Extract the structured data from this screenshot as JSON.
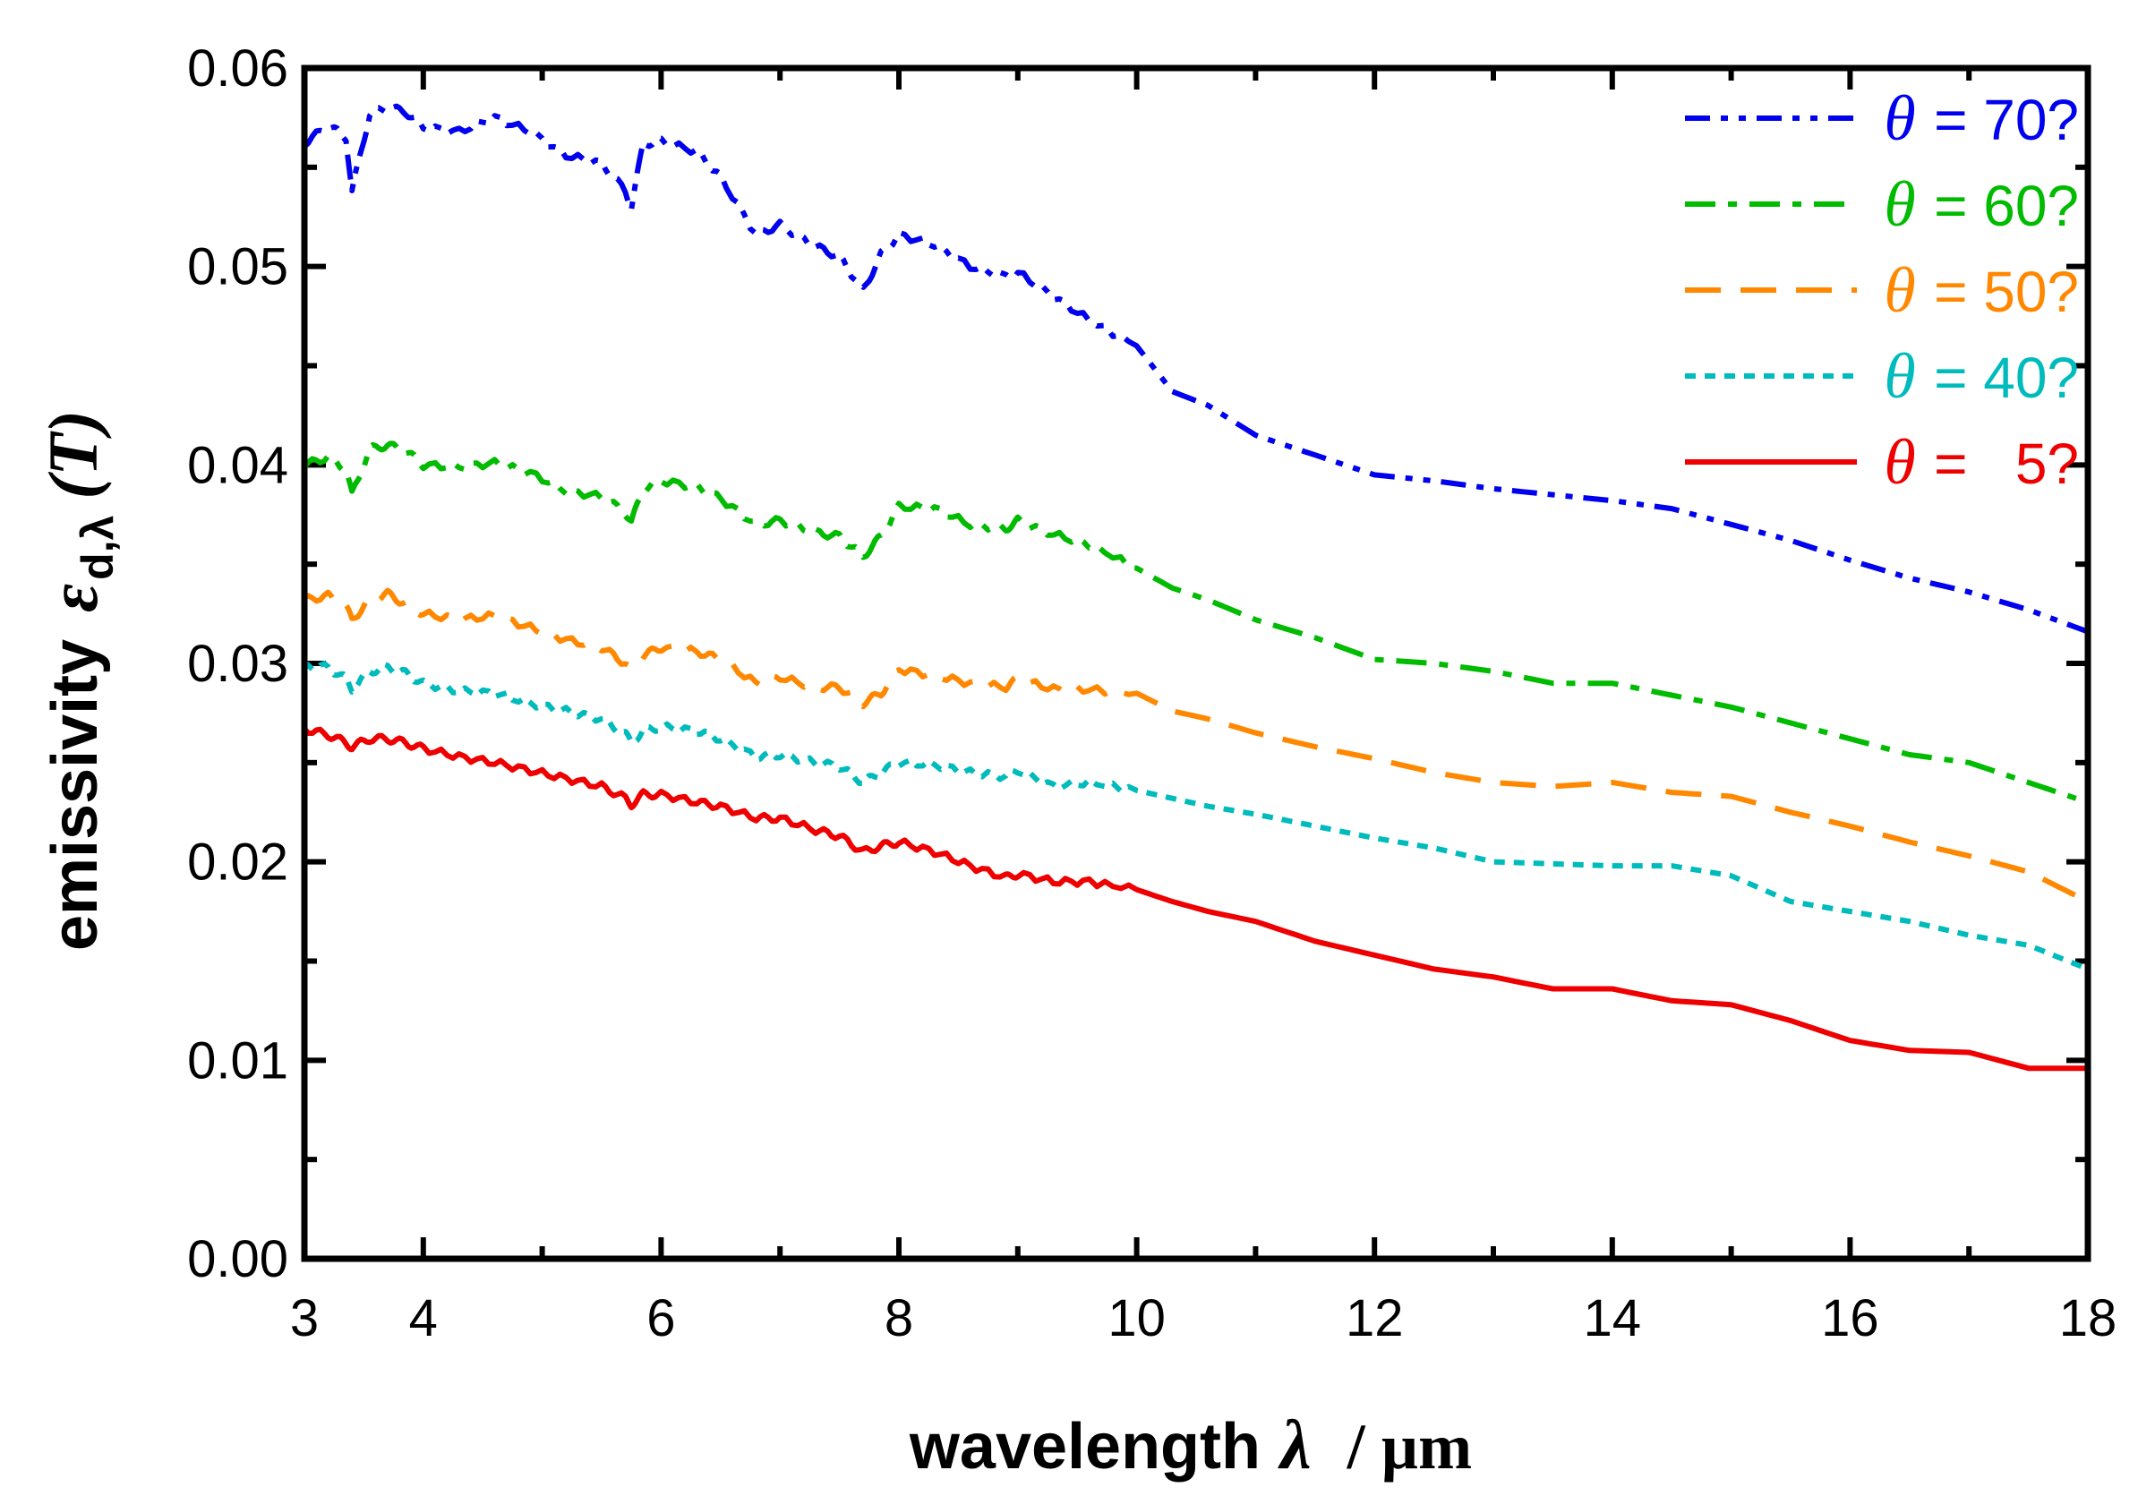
{
  "chart_data": {
    "type": "line",
    "xlabel": "wavelength",
    "xlabel_symbol": "λ",
    "xlabel_unit": "/ µm",
    "ylabel": "emissivity",
    "ylabel_symbol": "ε",
    "ylabel_subscript": "d,λ",
    "ylabel_arg": "(T)",
    "xlim": [
      3,
      18
    ],
    "ylim": [
      0.0,
      0.06
    ],
    "xticks": [
      3,
      4,
      6,
      8,
      10,
      12,
      14,
      16,
      18
    ],
    "xtick_labels": [
      "3",
      "4",
      "6",
      "8",
      "10",
      "12",
      "14",
      "16",
      "18"
    ],
    "yticks": [
      0.0,
      0.01,
      0.02,
      0.03,
      0.04,
      0.05,
      0.06
    ],
    "ytick_labels": [
      "0.00",
      "0.01",
      "0.02",
      "0.03",
      "0.04",
      "0.05",
      "0.06"
    ],
    "legend_position": "top-right",
    "series": [
      {
        "name": "θ = 70?",
        "theta_symbol": "θ",
        "label_text": "= 70?",
        "color": "#0000ee",
        "dash": "dashdotdot",
        "x": [
          3.0,
          3.2,
          3.35,
          3.4,
          3.55,
          3.7,
          3.85,
          4.0,
          4.3,
          4.6,
          4.9,
          5.2,
          5.5,
          5.7,
          5.75,
          5.85,
          6.0,
          6.3,
          6.5,
          6.8,
          7.0,
          7.3,
          7.5,
          7.7,
          7.85,
          8.0,
          8.3,
          8.6,
          8.9,
          9.0,
          9.3,
          9.6,
          10.0,
          10.3,
          10.6,
          11.0,
          11.5,
          12.0,
          12.5,
          13.0,
          13.5,
          14.0,
          14.5,
          15.0,
          15.5,
          16.0,
          16.5,
          17.0,
          17.5,
          18.0
        ],
        "values": [
          0.0562,
          0.0571,
          0.0565,
          0.0538,
          0.0577,
          0.058,
          0.0578,
          0.057,
          0.0568,
          0.0575,
          0.0568,
          0.0556,
          0.0552,
          0.0538,
          0.053,
          0.0562,
          0.0563,
          0.0558,
          0.0545,
          0.0516,
          0.0521,
          0.051,
          0.0505,
          0.0488,
          0.0506,
          0.0516,
          0.0511,
          0.05,
          0.0495,
          0.0497,
          0.0485,
          0.0473,
          0.046,
          0.0437,
          0.043,
          0.0415,
          0.0405,
          0.0395,
          0.0392,
          0.0388,
          0.0385,
          0.0382,
          0.0378,
          0.037,
          0.0362,
          0.0352,
          0.0343,
          0.0336,
          0.0327,
          0.0316
        ]
      },
      {
        "name": "θ = 60?",
        "theta_symbol": "θ",
        "label_text": "= 60?",
        "color": "#00bb00",
        "dash": "dashdot",
        "x": [
          3.0,
          3.2,
          3.35,
          3.4,
          3.55,
          3.7,
          3.85,
          4.0,
          4.3,
          4.6,
          4.9,
          5.2,
          5.5,
          5.7,
          5.75,
          5.85,
          6.0,
          6.3,
          6.5,
          6.8,
          7.0,
          7.3,
          7.5,
          7.7,
          7.85,
          8.0,
          8.3,
          8.6,
          8.9,
          9.0,
          9.3,
          9.6,
          10.0,
          10.3,
          10.6,
          11.0,
          11.5,
          12.0,
          12.5,
          13.0,
          13.5,
          14.0,
          14.5,
          15.0,
          15.5,
          16.0,
          16.5,
          17.0,
          17.5,
          18.0
        ],
        "values": [
          0.04,
          0.0404,
          0.0398,
          0.0385,
          0.0408,
          0.041,
          0.0407,
          0.04,
          0.0399,
          0.0401,
          0.0396,
          0.0387,
          0.0384,
          0.0376,
          0.0371,
          0.0388,
          0.0392,
          0.0389,
          0.0383,
          0.037,
          0.0372,
          0.0366,
          0.0364,
          0.0354,
          0.0364,
          0.0379,
          0.0378,
          0.037,
          0.0368,
          0.0372,
          0.0365,
          0.036,
          0.0348,
          0.0338,
          0.0332,
          0.0322,
          0.0313,
          0.0302,
          0.03,
          0.0296,
          0.029,
          0.029,
          0.0284,
          0.0278,
          0.027,
          0.0262,
          0.0254,
          0.025,
          0.024,
          0.023
        ]
      },
      {
        "name": "θ = 50?",
        "theta_symbol": "θ",
        "label_text": "= 50?",
        "color": "#ff8800",
        "dash": "dash",
        "x": [
          3.0,
          3.2,
          3.35,
          3.4,
          3.55,
          3.7,
          3.85,
          4.0,
          4.3,
          4.6,
          4.9,
          5.2,
          5.5,
          5.7,
          5.75,
          5.85,
          6.0,
          6.3,
          6.5,
          6.8,
          7.0,
          7.3,
          7.5,
          7.7,
          7.85,
          8.0,
          8.3,
          8.6,
          8.9,
          9.0,
          9.3,
          9.6,
          10.0,
          10.3,
          10.6,
          11.0,
          11.5,
          12.0,
          12.5,
          13.0,
          13.5,
          14.0,
          14.5,
          15.0,
          15.5,
          16.0,
          16.5,
          17.0,
          17.5,
          18.0
        ],
        "values": [
          0.0332,
          0.0334,
          0.0328,
          0.0322,
          0.0332,
          0.0335,
          0.033,
          0.0325,
          0.0322,
          0.0324,
          0.0318,
          0.0312,
          0.0308,
          0.03,
          0.0296,
          0.0304,
          0.0308,
          0.0306,
          0.0302,
          0.029,
          0.0293,
          0.0288,
          0.0288,
          0.028,
          0.0285,
          0.0297,
          0.0294,
          0.029,
          0.0288,
          0.0292,
          0.0287,
          0.0287,
          0.0285,
          0.0276,
          0.0272,
          0.0265,
          0.0258,
          0.0252,
          0.0245,
          0.024,
          0.0238,
          0.024,
          0.0235,
          0.0233,
          0.0225,
          0.0218,
          0.021,
          0.0203,
          0.0195,
          0.018
        ]
      },
      {
        "name": "θ = 40?",
        "theta_symbol": "θ",
        "label_text": "= 40?",
        "color": "#00bbbb",
        "dash": "dot",
        "x": [
          3.0,
          3.2,
          3.35,
          3.4,
          3.55,
          3.7,
          3.85,
          4.0,
          4.3,
          4.6,
          4.9,
          5.2,
          5.5,
          5.7,
          5.75,
          5.85,
          6.0,
          6.3,
          6.5,
          6.8,
          7.0,
          7.3,
          7.5,
          7.7,
          7.85,
          8.0,
          8.3,
          8.6,
          8.9,
          9.0,
          9.3,
          9.6,
          10.0,
          10.3,
          10.6,
          11.0,
          11.5,
          12.0,
          12.5,
          13.0,
          13.5,
          14.0,
          14.5,
          15.0,
          15.5,
          16.0,
          16.5,
          17.0,
          17.5,
          18.0
        ],
        "values": [
          0.0299,
          0.0298,
          0.0292,
          0.0287,
          0.0296,
          0.0298,
          0.0295,
          0.029,
          0.0286,
          0.0285,
          0.028,
          0.0276,
          0.0272,
          0.0264,
          0.026,
          0.0266,
          0.0268,
          0.0266,
          0.0262,
          0.0253,
          0.0254,
          0.025,
          0.0248,
          0.024,
          0.0245,
          0.025,
          0.0249,
          0.0245,
          0.0243,
          0.0246,
          0.0238,
          0.024,
          0.0236,
          0.0232,
          0.0228,
          0.0224,
          0.0218,
          0.0212,
          0.0207,
          0.02,
          0.0199,
          0.0198,
          0.0198,
          0.0193,
          0.018,
          0.0175,
          0.017,
          0.0163,
          0.0158,
          0.0146
        ]
      },
      {
        "name": "θ = 5?",
        "theta_symbol": "θ",
        "label_text": "=   5?",
        "color": "#ee0000",
        "dash": "solid",
        "x": [
          3.0,
          3.2,
          3.35,
          3.4,
          3.55,
          3.7,
          3.85,
          4.0,
          4.3,
          4.6,
          4.9,
          5.2,
          5.5,
          5.7,
          5.75,
          5.85,
          6.0,
          6.3,
          6.5,
          6.8,
          7.0,
          7.3,
          7.5,
          7.7,
          7.85,
          8.0,
          8.3,
          8.6,
          8.9,
          9.0,
          9.3,
          9.6,
          10.0,
          10.3,
          10.6,
          11.0,
          11.5,
          12.0,
          12.5,
          13.0,
          13.5,
          14.0,
          14.5,
          15.0,
          15.5,
          16.0,
          16.5,
          17.0,
          17.5,
          18.0
        ],
        "values": [
          0.0267,
          0.0264,
          0.026,
          0.0258,
          0.0262,
          0.0262,
          0.026,
          0.0257,
          0.0253,
          0.025,
          0.0246,
          0.0242,
          0.0238,
          0.0232,
          0.0229,
          0.0234,
          0.0234,
          0.023,
          0.0228,
          0.0222,
          0.0222,
          0.0216,
          0.0213,
          0.0205,
          0.0208,
          0.021,
          0.0205,
          0.0198,
          0.0192,
          0.0194,
          0.019,
          0.019,
          0.0186,
          0.018,
          0.0175,
          0.017,
          0.016,
          0.0153,
          0.0146,
          0.0142,
          0.0136,
          0.0136,
          0.013,
          0.0128,
          0.012,
          0.011,
          0.0105,
          0.0104,
          0.0096,
          0.0096
        ]
      }
    ]
  }
}
